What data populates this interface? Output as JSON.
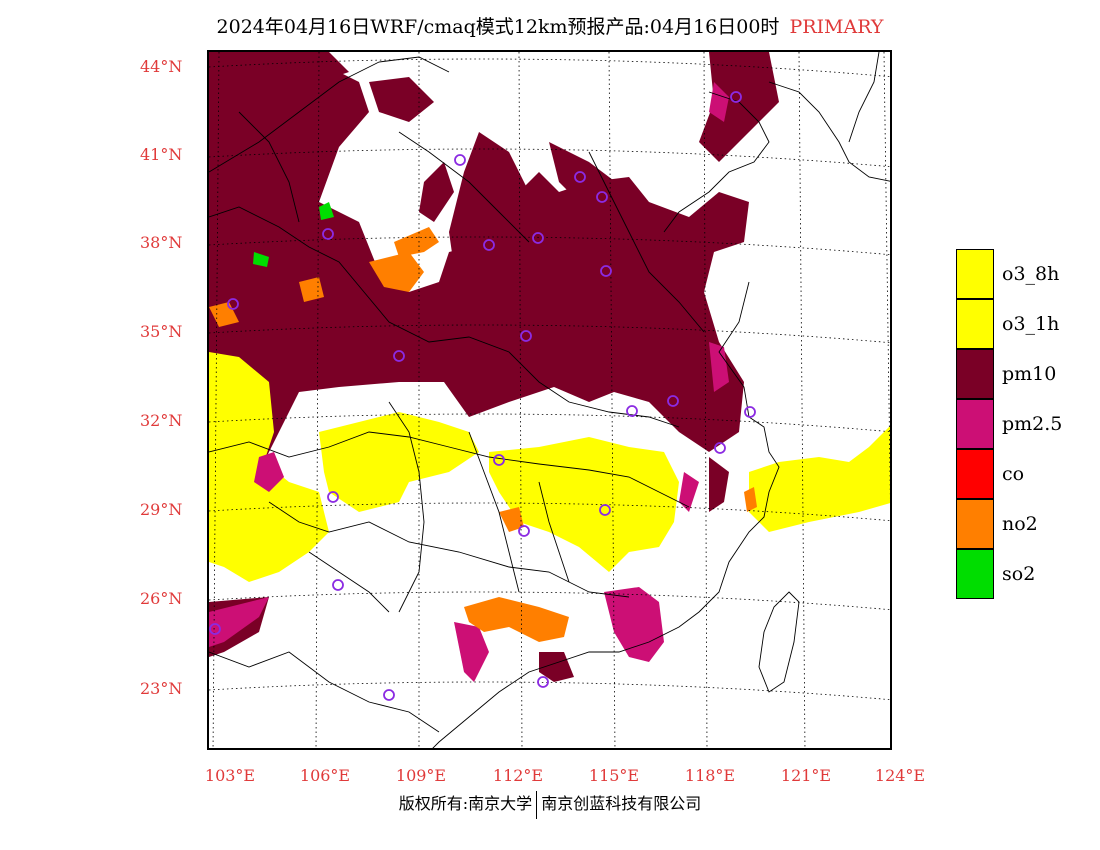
{
  "title": "2024年04月16日WRF/cmaq模式12km预报产品:04月16日00时",
  "title_tag": "PRIMARY",
  "lat_labels": [
    "44°N",
    "41°N",
    "38°N",
    "35°N",
    "32°N",
    "29°N",
    "26°N",
    "23°N"
  ],
  "lon_labels": [
    "103°E",
    "106°E",
    "109°E",
    "112°E",
    "115°E",
    "118°E",
    "121°E",
    "124°E"
  ],
  "legend": [
    {
      "label": "o3_8h",
      "color": "#ffff00"
    },
    {
      "label": "o3_1h",
      "color": "#ffff00"
    },
    {
      "label": "pm10",
      "color": "#7a0026"
    },
    {
      "label": "pm2.5",
      "color": "#cc0f75"
    },
    {
      "label": "co",
      "color": "#ff0000"
    },
    {
      "label": "no2",
      "color": "#ff7f00"
    },
    {
      "label": "so2",
      "color": "#00dd00"
    }
  ],
  "footer": {
    "left": "版权所有:南京大学",
    "right": "南京创蓝科技有限公司"
  }
}
